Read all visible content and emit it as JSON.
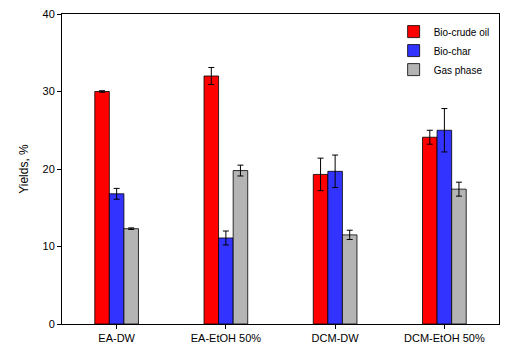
{
  "chart_data": {
    "type": "bar",
    "y_label": "Yields, %",
    "categories": [
      "EA-DW",
      "EA-EtOH 50%",
      "DCM-DW",
      "DCM-EtOH 50%"
    ],
    "series": [
      {
        "name": "Bio-crude oil",
        "color": "#ff0000",
        "values": [
          30.0,
          32.0,
          19.3,
          24.1
        ],
        "errors": [
          0.1,
          1.1,
          2.1,
          0.9
        ]
      },
      {
        "name": "Bio-char",
        "color": "#3333ff",
        "values": [
          16.8,
          11.1,
          19.7,
          25.0
        ],
        "errors": [
          0.7,
          0.9,
          2.1,
          2.8
        ]
      },
      {
        "name": "Gas phase",
        "color": "#b4b4b4",
        "values": [
          12.3,
          19.8,
          11.5,
          17.4
        ],
        "errors": [
          0.1,
          0.7,
          0.6,
          0.9
        ]
      }
    ],
    "ylim": [
      0,
      40
    ],
    "yticks": [
      0,
      10,
      20,
      30,
      40
    ],
    "grid": false,
    "legend": "top-right"
  }
}
